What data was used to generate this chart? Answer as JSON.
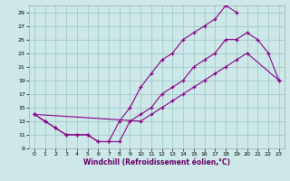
{
  "xlabel": "Windchill (Refroidissement éolien,°C)",
  "bg_color": "#cce8e8",
  "grid_color": "#aacece",
  "line_color": "#880088",
  "xlim": [
    -0.5,
    23.5
  ],
  "ylim": [
    9,
    30
  ],
  "xticks": [
    0,
    1,
    2,
    3,
    4,
    5,
    6,
    7,
    8,
    9,
    10,
    11,
    12,
    13,
    14,
    15,
    16,
    17,
    18,
    19,
    20,
    21,
    22,
    23
  ],
  "yticks": [
    9,
    11,
    13,
    15,
    17,
    19,
    21,
    23,
    25,
    27,
    29
  ],
  "line1_x": [
    0,
    1,
    2,
    3,
    4,
    5,
    6,
    7,
    8,
    9,
    10,
    11,
    12,
    13,
    14,
    15,
    16,
    17,
    18,
    19,
    20,
    21,
    22,
    23
  ],
  "line1_y": [
    14,
    13,
    12,
    11,
    11,
    11,
    10,
    10,
    10,
    13,
    14,
    15,
    17,
    18,
    19,
    21,
    22,
    23,
    25,
    25,
    26,
    25,
    23,
    19
  ],
  "line2_x": [
    0,
    1,
    2,
    3,
    4,
    5,
    6,
    7,
    8,
    9,
    10,
    11,
    12,
    13,
    14,
    15,
    16,
    17,
    18,
    19
  ],
  "line2_y": [
    14,
    13,
    12,
    11,
    11,
    11,
    10,
    10,
    13,
    15,
    18,
    20,
    22,
    23,
    25,
    26,
    27,
    28,
    30,
    29
  ],
  "line3_x": [
    0,
    10,
    11,
    12,
    13,
    14,
    15,
    16,
    17,
    18,
    19,
    20,
    23
  ],
  "line3_y": [
    14,
    13,
    14,
    15,
    16,
    17,
    18,
    19,
    20,
    21,
    22,
    23,
    19
  ]
}
